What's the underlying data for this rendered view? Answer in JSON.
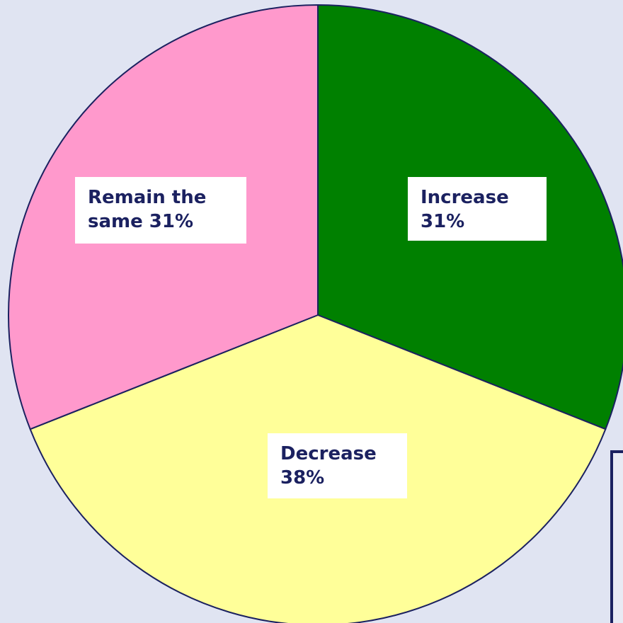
{
  "chart_data": {
    "type": "pie",
    "title": "",
    "slices": [
      {
        "label": "Increase",
        "value": 31,
        "display": "Increase 31%",
        "color": "#008000"
      },
      {
        "label": "Decrease",
        "value": 38,
        "display": "Decrease 38%",
        "color": "#ffff99"
      },
      {
        "label": "Remain the same",
        "value": 31,
        "display": "Remain the same 31%",
        "color": "#ff99cc"
      }
    ],
    "start_angle_deg": 0,
    "direction": "clockwise",
    "outline_color": "#1b2160",
    "legend": "none"
  },
  "colors": {
    "background": "#e0e4f2",
    "label_text": "#1b2160",
    "label_background": "#ffffff"
  }
}
